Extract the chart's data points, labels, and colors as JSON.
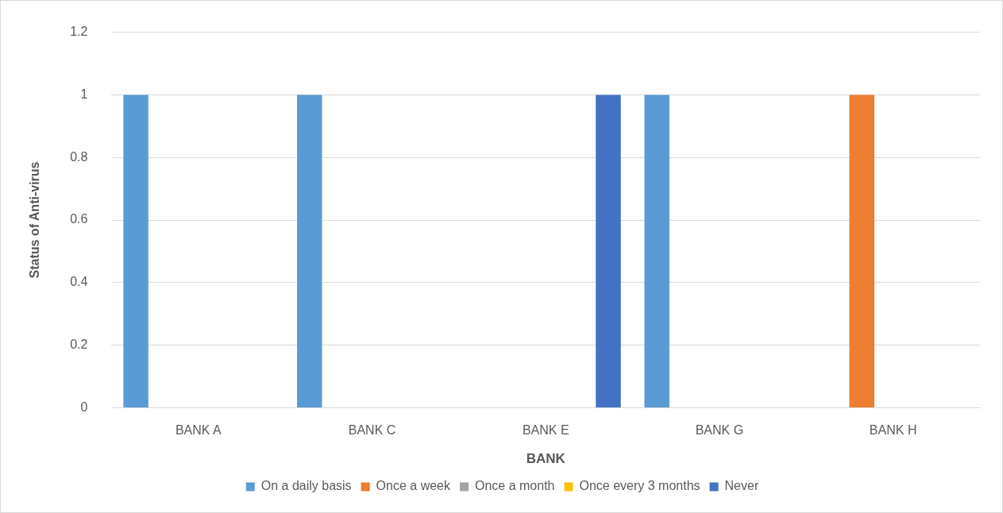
{
  "chart_data": {
    "type": "bar",
    "xlabel": "BANK",
    "ylabel": "Status of Anti-virus",
    "categories": [
      "BANK A",
      "BANK C",
      "BANK E",
      "BANK G",
      "BANK H"
    ],
    "series": [
      {
        "name": "On a daily basis",
        "color": "#5b9bd5",
        "values": [
          1,
          1,
          0,
          1,
          0
        ]
      },
      {
        "name": "Once a week",
        "color": "#ed7d31",
        "values": [
          0,
          0,
          0,
          0,
          1
        ]
      },
      {
        "name": "Once a month",
        "color": "#a5a5a5",
        "values": [
          0,
          0,
          0,
          0,
          0
        ]
      },
      {
        "name": "Once every 3 months",
        "color": "#ffc000",
        "values": [
          0,
          0,
          0,
          0,
          0
        ]
      },
      {
        "name": "Never",
        "color": "#4472c4",
        "values": [
          0,
          0,
          1,
          0,
          0
        ]
      }
    ],
    "ylim": [
      0,
      1.2
    ],
    "yticks": [
      0,
      0.2,
      0.4,
      0.6,
      0.8,
      1,
      1.2
    ],
    "grid": "y",
    "legend": "bottom"
  }
}
